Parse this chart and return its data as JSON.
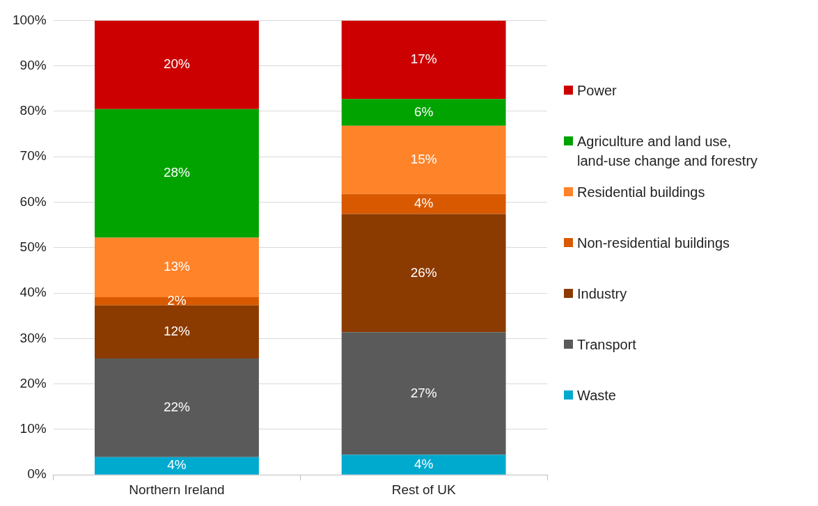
{
  "chart_data": {
    "type": "bar",
    "stacked": true,
    "categories": [
      "Northern Ireland",
      "Rest of UK"
    ],
    "series": [
      {
        "name": "Waste",
        "color": "#00a9ce",
        "values": [
          3.9,
          4.4
        ],
        "value_labels": [
          "4%",
          "4%"
        ]
      },
      {
        "name": "Transport",
        "color": "#5a5a5a",
        "values": [
          21.7,
          27.0
        ],
        "value_labels": [
          "22%",
          "27%"
        ]
      },
      {
        "name": "Industry",
        "color": "#8b3a00",
        "values": [
          11.7,
          26.0
        ],
        "value_labels": [
          "12%",
          "26%"
        ]
      },
      {
        "name": "Non-residential buildings",
        "color": "#d95900",
        "values": [
          1.8,
          4.4
        ],
        "value_labels": [
          "2%",
          "4%"
        ]
      },
      {
        "name": "Residential buildings",
        "color": "#ff8329",
        "values": [
          13.1,
          15.0
        ],
        "value_labels": [
          "13%",
          "15%"
        ]
      },
      {
        "name": "Agriculture and land use, land-use change and forestry",
        "color": "#00a300",
        "values": [
          28.3,
          5.9
        ],
        "value_labels": [
          "28%",
          "6%"
        ]
      },
      {
        "name": "Power",
        "color": "#cc0000",
        "values": [
          19.5,
          17.3
        ],
        "value_labels": [
          "20%",
          "17%"
        ]
      }
    ],
    "ylim": [
      0,
      100
    ],
    "yticks": [
      {
        "value": 0,
        "label": "0%"
      },
      {
        "value": 10,
        "label": "10%"
      },
      {
        "value": 20,
        "label": "20%"
      },
      {
        "value": 30,
        "label": "30%"
      },
      {
        "value": 40,
        "label": "40%"
      },
      {
        "value": 50,
        "label": "50%"
      },
      {
        "value": 60,
        "label": "60%"
      },
      {
        "value": 70,
        "label": "70%"
      },
      {
        "value": 80,
        "label": "80%"
      },
      {
        "value": 90,
        "label": "90%"
      },
      {
        "value": 100,
        "label": "100%"
      }
    ],
    "grid": "y",
    "legend": "right"
  }
}
